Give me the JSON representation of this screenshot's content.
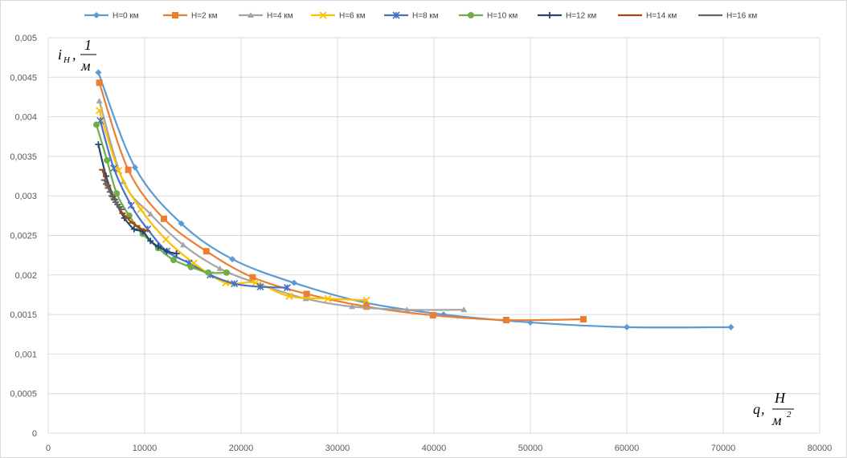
{
  "chart_data": {
    "type": "line",
    "title": "",
    "ylabel": {
      "main": "i",
      "sub": "H",
      "frac_num": "1",
      "frac_den": "м"
    },
    "xlabel": {
      "main": "q",
      "frac_num": "H",
      "frac_den": "м",
      "frac_den_sup": "2"
    },
    "xlim": [
      0,
      80000
    ],
    "ylim": [
      0,
      0.005
    ],
    "x_ticks": [
      0,
      10000,
      20000,
      30000,
      40000,
      50000,
      60000,
      70000,
      80000
    ],
    "y_ticks": [
      0,
      0.0005,
      0.001,
      0.0015,
      0.002,
      0.0025,
      0.003,
      0.0035,
      0.004,
      0.0045,
      0.005
    ],
    "x_tick_labels": [
      "0",
      "10000",
      "20000",
      "30000",
      "40000",
      "50000",
      "60000",
      "70000",
      "80000"
    ],
    "y_tick_labels": [
      "0",
      "0,0005",
      "0,001",
      "0,0015",
      "0,002",
      "0,0025",
      "0,003",
      "0,0035",
      "0,004",
      "0,0045",
      "0,005"
    ],
    "grid": true,
    "legend_position": "top",
    "series": [
      {
        "name": "H=0 км",
        "color": "#5b9bd5",
        "marker": "diamond",
        "points": [
          [
            5200,
            0.00456
          ],
          [
            9000,
            0.00336
          ],
          [
            13800,
            0.00265
          ],
          [
            19100,
            0.0022
          ],
          [
            25500,
            0.0019
          ],
          [
            32900,
            0.00165
          ],
          [
            41000,
            0.0015
          ],
          [
            50000,
            0.0014
          ],
          [
            60000,
            0.00134
          ],
          [
            70800,
            0.00134
          ]
        ]
      },
      {
        "name": "H=2 км",
        "color": "#ed7d31",
        "marker": "square",
        "points": [
          [
            5300,
            0.00443
          ],
          [
            8300,
            0.00333
          ],
          [
            12000,
            0.00271
          ],
          [
            16400,
            0.0023
          ],
          [
            21200,
            0.00197
          ],
          [
            26800,
            0.00176
          ],
          [
            33000,
            0.0016
          ],
          [
            39900,
            0.00149
          ],
          [
            47500,
            0.00143
          ],
          [
            55500,
            0.00144
          ]
        ]
      },
      {
        "name": "H=4 км",
        "color": "#a5a5a5",
        "marker": "triangle",
        "points": [
          [
            5300,
            0.0042
          ],
          [
            7800,
            0.00318
          ],
          [
            10600,
            0.00277
          ],
          [
            14000,
            0.00238
          ],
          [
            17800,
            0.00208
          ],
          [
            22000,
            0.00188
          ],
          [
            26700,
            0.0017
          ],
          [
            31500,
            0.0016
          ],
          [
            37200,
            0.00156
          ],
          [
            43100,
            0.00156
          ]
        ]
      },
      {
        "name": "H=6 км",
        "color": "#ffc000",
        "marker": "x",
        "points": [
          [
            5300,
            0.00408
          ],
          [
            7300,
            0.00332
          ],
          [
            9600,
            0.00283
          ],
          [
            12200,
            0.00245
          ],
          [
            15100,
            0.00215
          ],
          [
            18400,
            0.0019
          ],
          [
            21500,
            0.0019
          ],
          [
            25000,
            0.00173
          ],
          [
            29000,
            0.0017
          ],
          [
            33000,
            0.00168
          ]
        ]
      },
      {
        "name": "H=8 км",
        "color": "#4472c4",
        "marker": "star",
        "points": [
          [
            5400,
            0.00395
          ],
          [
            6800,
            0.00335
          ],
          [
            8600,
            0.00288
          ],
          [
            10300,
            0.00258
          ],
          [
            12300,
            0.0023
          ],
          [
            14600,
            0.00215
          ],
          [
            16800,
            0.002
          ],
          [
            19300,
            0.00189
          ],
          [
            22000,
            0.00185
          ],
          [
            24800,
            0.00184
          ]
        ]
      },
      {
        "name": "H=10 км",
        "color": "#70ad47",
        "marker": "circle",
        "points": [
          [
            5000,
            0.0039
          ],
          [
            6100,
            0.00345
          ],
          [
            7100,
            0.00303
          ],
          [
            8400,
            0.00275
          ],
          [
            9800,
            0.00252
          ],
          [
            11400,
            0.00234
          ],
          [
            13000,
            0.00219
          ],
          [
            14800,
            0.0021
          ],
          [
            16600,
            0.00203
          ],
          [
            18500,
            0.00203
          ]
        ]
      },
      {
        "name": "H=12 км",
        "color": "#264478",
        "marker": "plus",
        "points": [
          [
            5200,
            0.00365
          ],
          [
            6000,
            0.00325
          ],
          [
            6900,
            0.00295
          ],
          [
            7900,
            0.00272
          ],
          [
            8900,
            0.00258
          ],
          [
            9800,
            0.00255
          ],
          [
            10600,
            0.00243
          ],
          [
            11400,
            0.00236
          ],
          [
            12300,
            0.0023
          ],
          [
            13300,
            0.00227
          ]
        ]
      },
      {
        "name": "H=14 км",
        "color": "#9e480e",
        "marker": "dash",
        "points": [
          [
            5600,
            0.00333
          ],
          [
            6200,
            0.00313
          ],
          [
            6700,
            0.00299
          ],
          [
            7200,
            0.00289
          ],
          [
            7700,
            0.00278
          ],
          [
            8200,
            0.00272
          ],
          [
            8700,
            0.00266
          ],
          [
            9200,
            0.00262
          ],
          [
            9700,
            0.00258
          ],
          [
            10200,
            0.00256
          ]
        ]
      },
      {
        "name": "H=16 км",
        "color": "#636363",
        "marker": "dash",
        "points": [
          [
            5800,
            0.0032
          ],
          [
            6000,
            0.00315
          ],
          [
            6200,
            0.0031
          ],
          [
            6400,
            0.00305
          ],
          [
            6600,
            0.003
          ],
          [
            6800,
            0.00296
          ],
          [
            7000,
            0.00292
          ],
          [
            7200,
            0.00289
          ],
          [
            7400,
            0.00286
          ],
          [
            7600,
            0.00283
          ]
        ]
      }
    ]
  }
}
